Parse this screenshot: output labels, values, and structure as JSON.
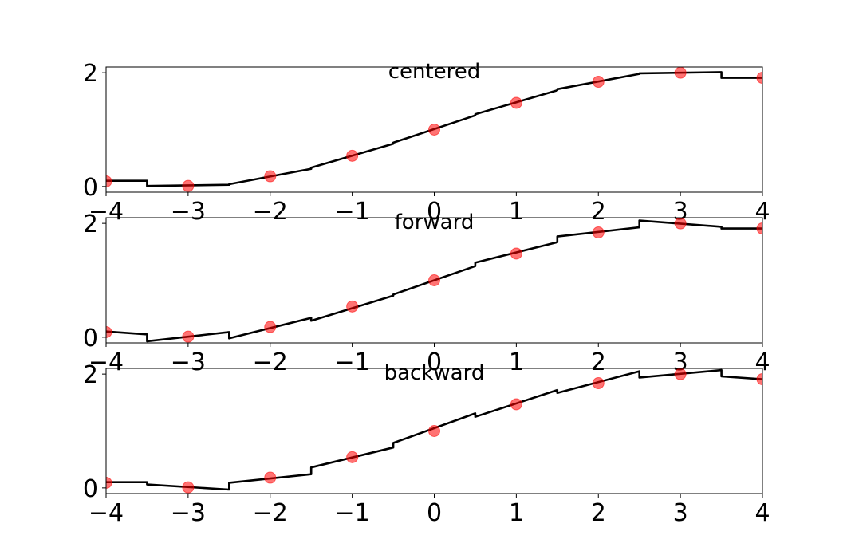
{
  "chart_data": [
    {
      "type": "line",
      "title": "centered",
      "xlim": [
        -4,
        4
      ],
      "ylim": [
        -0.1,
        2.1
      ],
      "x_ticks": [
        -4,
        -3,
        -2,
        -1,
        0,
        1,
        2,
        3,
        4
      ],
      "x_tick_labels": [
        "−4",
        "−3",
        "−2",
        "−1",
        "0",
        "1",
        "2",
        "3",
        "4"
      ],
      "y_ticks": [
        0,
        2
      ],
      "y_tick_labels": [
        "0",
        "2"
      ],
      "series": [
        {
          "kind": "step-line",
          "color": "#000000",
          "x": [
            -4,
            -3.5,
            -3.5,
            -2.5,
            -2.5,
            -1.5,
            -1.5,
            -0.5,
            -0.5,
            0.5,
            0.5,
            1.5,
            1.5,
            2.5,
            2.5,
            3.5,
            3.5,
            4
          ],
          "y": [
            0.1,
            0.1,
            0.01,
            0.03,
            0.04,
            0.31,
            0.33,
            0.75,
            0.77,
            1.25,
            1.27,
            1.69,
            1.71,
            1.98,
            1.99,
            2.01,
            1.91,
            1.91
          ]
        },
        {
          "kind": "markers",
          "color": "#ff0000",
          "x": [
            -4,
            -3,
            -2,
            -1,
            0,
            1,
            2,
            3,
            4
          ],
          "y": [
            0.09,
            0.01,
            0.18,
            0.54,
            1.0,
            1.47,
            1.84,
            2.0,
            1.91
          ]
        }
      ]
    },
    {
      "type": "line",
      "title": "forward",
      "xlim": [
        -4,
        4
      ],
      "ylim": [
        -0.1,
        2.1
      ],
      "x_ticks": [
        -4,
        -3,
        -2,
        -1,
        0,
        1,
        2,
        3,
        4
      ],
      "x_tick_labels": [
        "−4",
        "−3",
        "−2",
        "−1",
        "0",
        "1",
        "2",
        "3",
        "4"
      ],
      "y_ticks": [
        0,
        2
      ],
      "y_tick_labels": [
        "0",
        "2"
      ],
      "series": [
        {
          "kind": "step-line",
          "color": "#000000",
          "x": [
            -4,
            -3.5,
            -3.5,
            -2.5,
            -2.5,
            -1.5,
            -1.5,
            -0.5,
            -0.5,
            0.5,
            0.5,
            1.5,
            1.5,
            2.5,
            2.5,
            3.5,
            3.5,
            4
          ],
          "y": [
            0.1,
            0.05,
            -0.07,
            0.09,
            -0.02,
            0.34,
            0.29,
            0.73,
            0.75,
            1.25,
            1.31,
            1.67,
            1.77,
            1.93,
            2.05,
            1.94,
            1.91,
            1.91
          ]
        },
        {
          "kind": "markers",
          "color": "#ff0000",
          "x": [
            -4,
            -3,
            -2,
            -1,
            0,
            1,
            2,
            3,
            4
          ],
          "y": [
            0.09,
            0.01,
            0.18,
            0.54,
            1.0,
            1.47,
            1.84,
            2.0,
            1.91
          ]
        }
      ]
    },
    {
      "type": "line",
      "title": "backward",
      "xlim": [
        -4,
        4
      ],
      "ylim": [
        -0.1,
        2.1
      ],
      "x_ticks": [
        -4,
        -3,
        -2,
        -1,
        0,
        1,
        2,
        3,
        4
      ],
      "x_tick_labels": [
        "−4",
        "−3",
        "−2",
        "−1",
        "0",
        "1",
        "2",
        "3",
        "4"
      ],
      "y_ticks": [
        0,
        2
      ],
      "y_tick_labels": [
        "0",
        "2"
      ],
      "series": [
        {
          "kind": "step-line",
          "color": "#000000",
          "x": [
            -4,
            -3.5,
            -3.5,
            -2.5,
            -2.5,
            -1.5,
            -1.5,
            -0.5,
            -0.5,
            0.5,
            0.5,
            1.5,
            1.5,
            2.5,
            2.5,
            3.5,
            3.5,
            4
          ],
          "y": [
            0.1,
            0.1,
            0.06,
            -0.03,
            0.09,
            0.24,
            0.36,
            0.71,
            0.79,
            1.31,
            1.25,
            1.72,
            1.67,
            2.05,
            1.94,
            2.07,
            1.96,
            1.91
          ]
        },
        {
          "kind": "markers",
          "color": "#ff0000",
          "x": [
            -4,
            -3,
            -2,
            -1,
            0,
            1,
            2,
            3,
            4
          ],
          "y": [
            0.09,
            0.01,
            0.18,
            0.54,
            1.0,
            1.47,
            1.84,
            2.0,
            1.91
          ]
        }
      ]
    }
  ]
}
